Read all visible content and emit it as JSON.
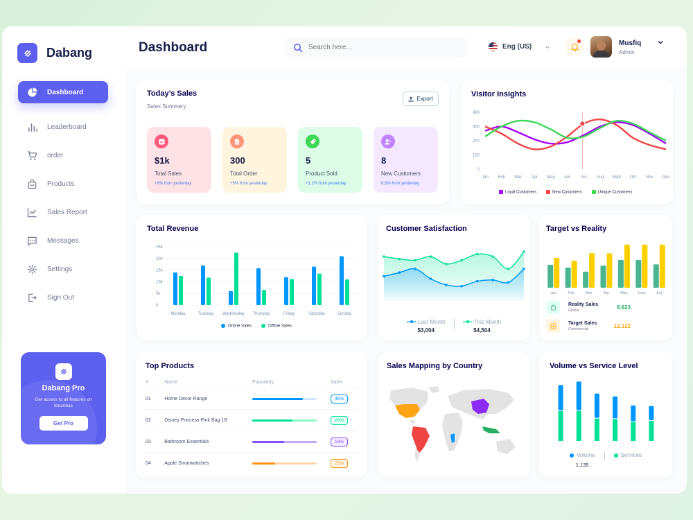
{
  "app": {
    "name": "Dabang"
  },
  "sidebar": {
    "items": [
      {
        "label": "Dashboard",
        "icon": "pie-chart-icon",
        "active": true
      },
      {
        "label": "Leaderboard",
        "icon": "leaderboard-icon"
      },
      {
        "label": "order",
        "icon": "cart-icon"
      },
      {
        "label": "Products",
        "icon": "bag-icon"
      },
      {
        "label": "Sales Report",
        "icon": "line-chart-icon"
      },
      {
        "label": "Messages",
        "icon": "message-icon"
      },
      {
        "label": "Settings",
        "icon": "gear-icon"
      },
      {
        "label": "Sign Out",
        "icon": "sign-out-icon"
      }
    ]
  },
  "promo": {
    "title": "Dabang Pro",
    "desc": "Get access to all features on tetumbas",
    "button": "Get Pro"
  },
  "header": {
    "title": "Dashboard",
    "search_placeholder": "Search here...",
    "language": "Eng (US)",
    "user_name": "Musfiq",
    "user_role": "Admin"
  },
  "todays_sales": {
    "title": "Today’s Sales",
    "subtitle": "Sales Summery",
    "export": "Export",
    "stats": [
      {
        "value": "$1k",
        "label": "Total Sales",
        "change": "+8% from yesterday",
        "bg": "#ffe2e5",
        "icon_bg": "#fa5a7d",
        "icon": "bar-chart-icon"
      },
      {
        "value": "300",
        "label": "Total Order",
        "change": "+5% from yesterday",
        "bg": "#fff4de",
        "icon_bg": "#ff947a",
        "icon": "document-icon"
      },
      {
        "value": "5",
        "label": "Product Sold",
        "change": "+1,2% from yesterday",
        "bg": "#dcfce7",
        "icon_bg": "#3cd856",
        "icon": "tag-icon"
      },
      {
        "value": "8",
        "label": "New Customers",
        "change": "0,5% from yesterday",
        "bg": "#f3e8ff",
        "icon_bg": "#bf83ff",
        "icon": "add-user-icon"
      }
    ]
  },
  "visitor_insights": {
    "title": "Visitor Insights",
    "chart_data": {
      "type": "line",
      "x": [
        "Jan",
        "Feb",
        "Mar",
        "Apr",
        "May",
        "Jun",
        "Jul",
        "Aug",
        "Sept",
        "Oct",
        "Nov",
        "Dec"
      ],
      "ylim": [
        0,
        400
      ],
      "yticks": [
        "400",
        "300",
        "200",
        "100",
        "0"
      ],
      "series": [
        {
          "name": "Loyal Customers",
          "color": "#a700ff",
          "values": [
            270,
            300,
            260,
            210,
            180,
            190,
            240,
            300,
            330,
            310,
            250,
            180
          ]
        },
        {
          "name": "New Customers",
          "color": "#ef4444",
          "values": [
            300,
            250,
            180,
            140,
            160,
            230,
            320,
            350,
            310,
            220,
            170,
            140
          ]
        },
        {
          "name": "Unique Customers",
          "color": "#3cd856",
          "values": [
            230,
            300,
            340,
            330,
            280,
            220,
            230,
            290,
            340,
            320,
            260,
            200
          ]
        }
      ]
    }
  },
  "total_revenue": {
    "title": "Total Revenue",
    "chart_data": {
      "type": "bar",
      "categories": [
        "Monday",
        "Tuesday",
        "Wednesday",
        "Thursday",
        "Friday",
        "Saturday",
        "Sunday"
      ],
      "ylim": [
        0,
        25000
      ],
      "yticks": [
        "25k",
        "20k",
        "15k",
        "10k",
        "5k",
        "0"
      ],
      "series": [
        {
          "name": "Online Sales",
          "color": "#0095ff",
          "values": [
            14000,
            17000,
            6000,
            15800,
            12000,
            16500,
            21000
          ]
        },
        {
          "name": "Offline Sales",
          "color": "#00e096",
          "values": [
            12500,
            11800,
            22500,
            6500,
            11200,
            13500,
            11000
          ]
        }
      ]
    }
  },
  "customer_satisfaction": {
    "title": "Customer Satisfaction",
    "chart_data": {
      "type": "area",
      "series": [
        {
          "name": "Last Month",
          "color": "#0095ff",
          "total": "$3,004",
          "values": [
            2.0,
            2.3,
            2.6,
            1.8,
            1.3,
            1.2,
            1.6,
            1.7,
            1.5,
            2.6
          ]
        },
        {
          "name": "This Month",
          "color": "#07e098",
          "total": "$4,504",
          "values": [
            3.6,
            3.4,
            3.3,
            3.6,
            3.0,
            3.3,
            3.8,
            3.6,
            2.6,
            4.0
          ]
        }
      ]
    }
  },
  "target_reality": {
    "title": "Target vs Reality",
    "chart_data": {
      "type": "bar",
      "categories": [
        "Jan",
        "Feb",
        "Mar",
        "Apr",
        "May",
        "June",
        "July"
      ],
      "series": [
        {
          "name": "Reality Sales",
          "color": "#4ab58e",
          "values": [
            5.7,
            5.0,
            4.0,
            5.5,
            6.9,
            6.9,
            5.8
          ]
        },
        {
          "name": "Target Sales",
          "color": "#ffcf00",
          "values": [
            7.4,
            6.7,
            8.6,
            8.5,
            10.7,
            10.7,
            10.7
          ]
        }
      ]
    },
    "rows": [
      {
        "name": "Reality Sales",
        "sub": "Global",
        "value": "8.823",
        "color": "#27ae60",
        "icon_bg": "#e2fff3",
        "icon": "bag-icon"
      },
      {
        "name": "Target Sales",
        "sub": "Commercial",
        "value": "12.122",
        "color": "#ffa412",
        "icon_bg": "#fff4de",
        "icon": "ticket-icon"
      }
    ]
  },
  "top_products": {
    "title": "Top Products",
    "headers": [
      "#",
      "Name",
      "Popularity",
      "Sales"
    ],
    "rows": [
      {
        "num": "01",
        "name": "Home Decor Range",
        "popularity": 0.78,
        "sales": "45%",
        "color": "#0095ff",
        "bg": "#cde7ff"
      },
      {
        "num": "02",
        "name": "Disney Princess Pink Bag 18'",
        "popularity": 0.62,
        "sales": "29%",
        "color": "#00e096",
        "bg": "#8cfac7"
      },
      {
        "num": "03",
        "name": "Bathroom Essentials",
        "popularity": 0.5,
        "sales": "18%",
        "color": "#884dff",
        "bg": "#c5a8ff"
      },
      {
        "num": "04",
        "name": "Apple Smartwatches",
        "popularity": 0.35,
        "sales": "25%",
        "color": "#ff8f0d",
        "bg": "#ffd5a4"
      }
    ]
  },
  "sales_mapping": {
    "title": "Sales Mapping by Country",
    "highlight_colors": [
      "#ffa412",
      "#ef4444",
      "#8b2cf5",
      "#27ae60",
      "#0095ff"
    ]
  },
  "volume_service": {
    "title": "Volume vs Service Level",
    "chart_data": {
      "type": "bar",
      "series": [
        {
          "name": "Volume",
          "color": "#0095ff",
          "total": "1,135",
          "values": [
            5.3,
            6.0,
            5.1,
            4.6,
            3.3,
            3.0
          ]
        },
        {
          "name": "Services",
          "color": "#00e096",
          "values": [
            6.3,
            6.3,
            4.7,
            4.6,
            4.0,
            4.2
          ]
        }
      ]
    }
  }
}
